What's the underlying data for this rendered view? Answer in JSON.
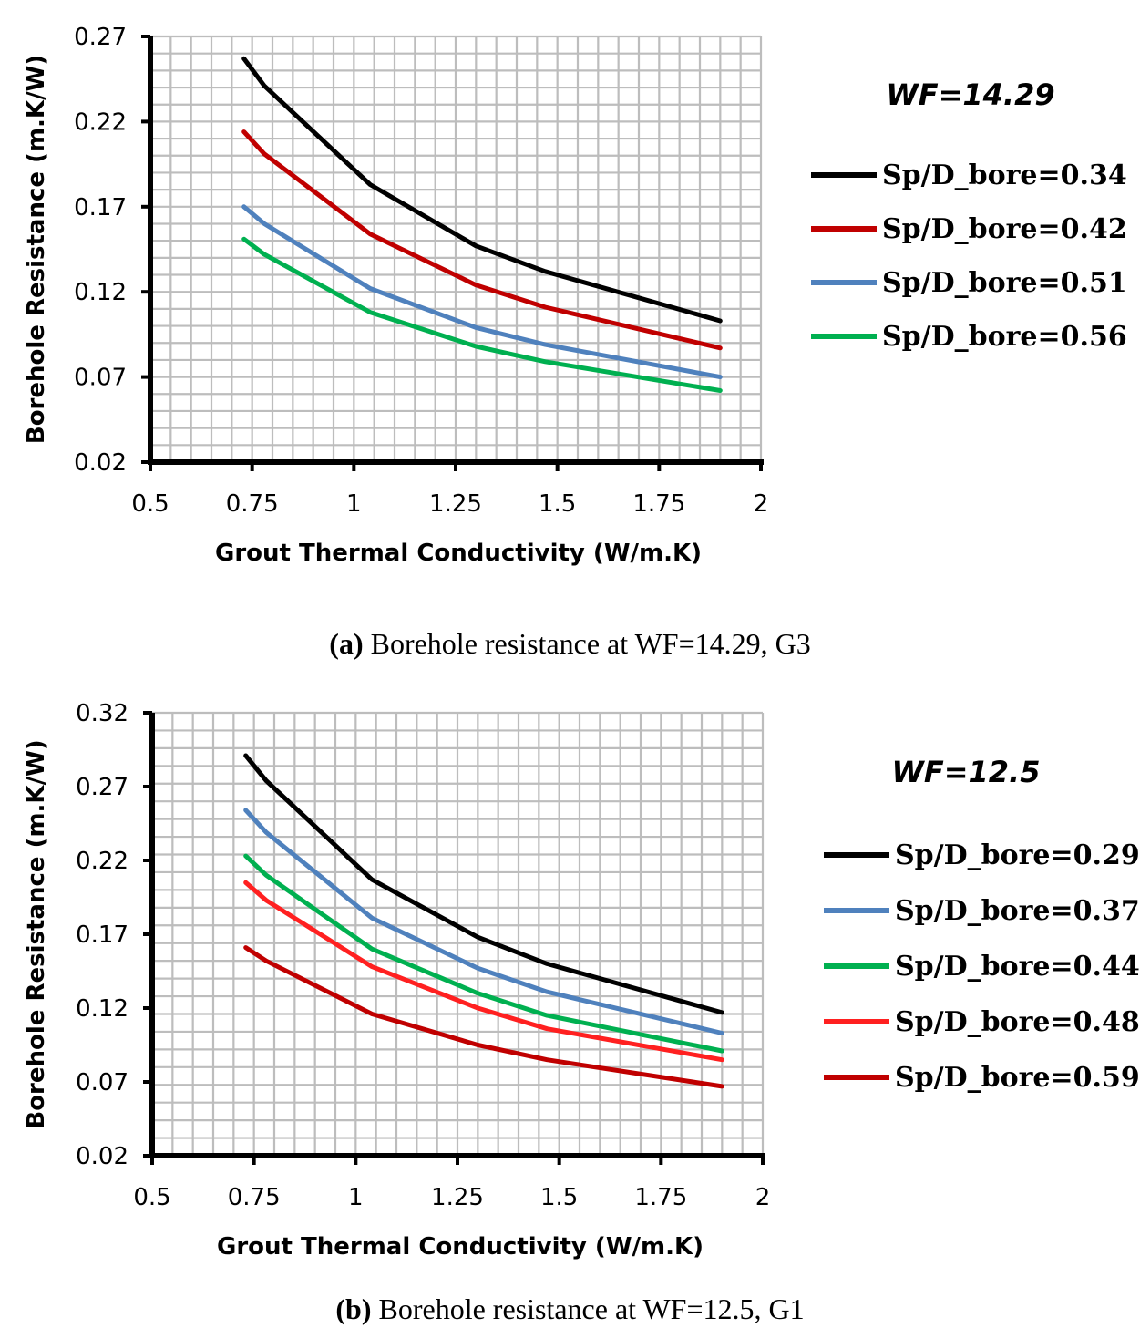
{
  "captions": [
    {
      "letter": "(a)",
      "text": "Borehole resistance at WF=14.29, G3"
    },
    {
      "letter": "(b)",
      "text": "Borehole resistance at WF=12.5, G1"
    }
  ],
  "chart_data": [
    {
      "type": "line",
      "annotation": "WF=14.29",
      "xlabel": "Grout Thermal Conductivity (W/m.K)",
      "ylabel": "Borehole Resistance (m.K/W)",
      "xlim": [
        0.5,
        2
      ],
      "ylim": [
        0.02,
        0.27
      ],
      "xticks": [
        "0.5",
        "0.75",
        "1",
        "1.25",
        "1.5",
        "1.75",
        "2"
      ],
      "yticks": [
        "0.02",
        "0.07",
        "0.12",
        "0.17",
        "0.22",
        "0.27"
      ],
      "grid": true,
      "legend_position": "right",
      "x": [
        0.73,
        0.78,
        1.04,
        1.3,
        1.47,
        1.9
      ],
      "series": [
        {
          "name": "Sp/D_bore=0.34",
          "color": "#000000",
          "values": [
            0.257,
            0.241,
            0.183,
            0.147,
            0.132,
            0.103
          ]
        },
        {
          "name": "Sp/D_bore=0.42",
          "color": "#c00000",
          "values": [
            0.214,
            0.201,
            0.154,
            0.124,
            0.111,
            0.087
          ]
        },
        {
          "name": "Sp/D_bore=0.51",
          "color": "#4f81bd",
          "values": [
            0.17,
            0.16,
            0.122,
            0.099,
            0.089,
            0.07
          ]
        },
        {
          "name": "Sp/D_bore=0.56",
          "color": "#00b050",
          "values": [
            0.151,
            0.142,
            0.108,
            0.088,
            0.079,
            0.062
          ]
        }
      ]
    },
    {
      "type": "line",
      "annotation": "WF=12.5",
      "xlabel": "Grout Thermal Conductivity (W/m.K)",
      "ylabel": "Borehole Resistance (m.K/W)",
      "xlim": [
        0.5,
        2
      ],
      "ylim": [
        0.02,
        0.32
      ],
      "xticks": [
        "0.5",
        "0.75",
        "1",
        "1.25",
        "1.5",
        "1.75",
        "2"
      ],
      "yticks": [
        "0.02",
        "0.07",
        "0.12",
        "0.17",
        "0.22",
        "0.27",
        "0.32"
      ],
      "grid": true,
      "legend_position": "right",
      "x": [
        0.73,
        0.78,
        1.04,
        1.3,
        1.47,
        1.9
      ],
      "series": [
        {
          "name": "Sp/D_bore=0.29",
          "color": "#000000",
          "values": [
            0.291,
            0.274,
            0.207,
            0.168,
            0.15,
            0.117
          ]
        },
        {
          "name": "Sp/D_bore=0.37",
          "color": "#4f81bd",
          "values": [
            0.254,
            0.239,
            0.181,
            0.147,
            0.131,
            0.103
          ]
        },
        {
          "name": "Sp/D_bore=0.44",
          "color": "#00b050",
          "values": [
            0.223,
            0.21,
            0.16,
            0.13,
            0.115,
            0.091
          ]
        },
        {
          "name": "Sp/D_bore=0.48",
          "color": "#ff2020",
          "values": [
            0.205,
            0.193,
            0.148,
            0.12,
            0.106,
            0.085
          ]
        },
        {
          "name": "Sp/D_bore=0.59",
          "color": "#c00000",
          "values": [
            0.161,
            0.152,
            0.116,
            0.095,
            0.085,
            0.067
          ]
        }
      ]
    }
  ]
}
